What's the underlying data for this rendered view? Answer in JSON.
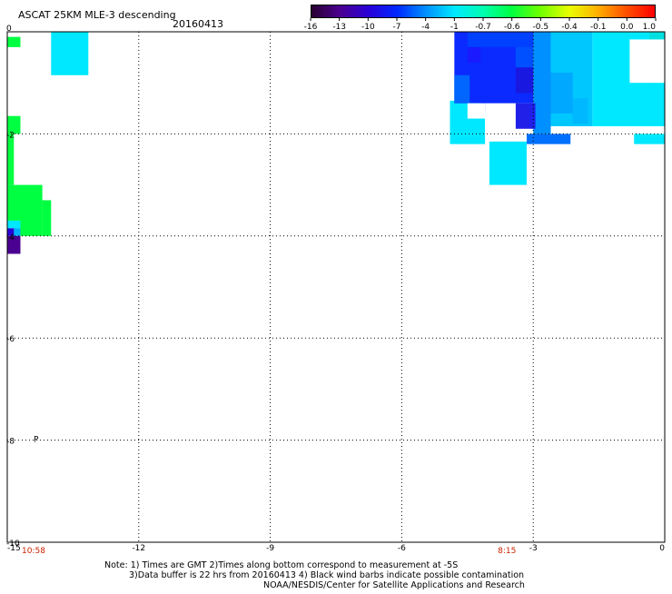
{
  "title": "ASCAT 25KM MLE-3 descending",
  "date": "20160413",
  "colorbar": {
    "labels": [
      "-16",
      "-13",
      "-10",
      "-7",
      "-4",
      "-1",
      "-0.7",
      "-0.6",
      "-0.5",
      "-0.4",
      "-0.1",
      "0.0",
      "1.0"
    ],
    "colors": [
      "#2a0030",
      "#4a0090",
      "#2a00d8",
      "#0028ff",
      "#0090ff",
      "#00e8ff",
      "#00ffb0",
      "#00ff40",
      "#70ff00",
      "#e8ff00",
      "#ffb000",
      "#ff5000",
      "#ff0000"
    ]
  },
  "axes": {
    "x_range": [
      -15,
      0
    ],
    "y_range": [
      -10,
      0
    ],
    "x_ticks": [
      -15,
      -12,
      -9,
      -6,
      -3,
      0
    ],
    "y_ticks": [
      0,
      -2,
      -4,
      -6,
      -8,
      -10
    ],
    "x_tick_labels": [
      "-15",
      "-12",
      "-9",
      "-6",
      "-3",
      "0"
    ],
    "y_tick_labels": [
      "0",
      "-2",
      "-4",
      "-6",
      "-8",
      "-10"
    ]
  },
  "time_labels": [
    {
      "text": "10:58",
      "x": -14.4
    },
    {
      "text": "8:15",
      "x": -3.6
    }
  ],
  "wind_barb_symbol": "P",
  "wind_barb_position": {
    "x": -14.4,
    "y": -8
  },
  "notes": [
    "Note: 1) Times are GMT 2)Times along bottom correspond to measurement at -5S",
    "3)Data buffer is 22 hrs from 20160413 4) Black wind barbs indicate possible contamination",
    "NOAA/NESDIS/Center for Satellite Applications and Research"
  ],
  "cells": [
    {
      "lon": -15.0,
      "lat": -0.3,
      "w": 0.3,
      "h": 0.2,
      "c": "#00ff40"
    },
    {
      "lon": -14.0,
      "lat": -0.85,
      "w": 0.85,
      "h": 0.85,
      "c": "#00e8ff"
    },
    {
      "lon": -15.0,
      "lat": -2.0,
      "w": 0.3,
      "h": 0.35,
      "c": "#00ff40"
    },
    {
      "lon": -15.0,
      "lat": -3.0,
      "w": 0.15,
      "h": 1.0,
      "c": "#00ff40"
    },
    {
      "lon": -15.0,
      "lat": -3.7,
      "w": 0.8,
      "h": 0.7,
      "c": "#00ff40"
    },
    {
      "lon": -14.2,
      "lat": -4.0,
      "w": 0.2,
      "h": 0.7,
      "c": "#00ff40"
    },
    {
      "lon": -14.7,
      "lat": -4.0,
      "w": 0.5,
      "h": 0.35,
      "c": "#00ff40"
    },
    {
      "lon": -15.0,
      "lat": -3.85,
      "w": 0.3,
      "h": 0.15,
      "c": "#00e8ff"
    },
    {
      "lon": -15.0,
      "lat": -4.0,
      "w": 0.2,
      "h": 0.15,
      "c": "#2a00d8"
    },
    {
      "lon": -14.85,
      "lat": -4.0,
      "w": 0.15,
      "h": 0.15,
      "c": "#00b0ff"
    },
    {
      "lon": -15.0,
      "lat": -4.35,
      "w": 0.3,
      "h": 0.35,
      "c": "#4a0090"
    },
    {
      "lon": -4.9,
      "lat": -2.2,
      "w": 0.8,
      "h": 0.85,
      "c": "#00e8ff"
    },
    {
      "lon": -4.0,
      "lat": -3.0,
      "w": 0.85,
      "h": 0.85,
      "c": "#00e8ff"
    },
    {
      "lon": -3.15,
      "lat": -2.2,
      "w": 1.0,
      "h": 0.2,
      "c": "#0070ff"
    },
    {
      "lon": -0.7,
      "lat": -2.2,
      "w": 0.7,
      "h": 0.2,
      "c": "#00e8ff"
    },
    {
      "lon": -0.85,
      "lat": -1.85,
      "w": 0.85,
      "h": 1.85,
      "c": "#00e8ff"
    },
    {
      "lon": -1.65,
      "lat": -1.85,
      "w": 1.3,
      "h": 1.85,
      "c": "#00e8ff"
    },
    {
      "lon": -2.6,
      "lat": -1.85,
      "w": 0.95,
      "h": 1.85,
      "c": "#00c8ff"
    },
    {
      "lon": -3.0,
      "lat": -2.0,
      "w": 0.4,
      "h": 2.0,
      "c": "#0090ff"
    },
    {
      "lon": -4.8,
      "lat": -1.4,
      "w": 1.8,
      "h": 1.4,
      "c": "#0a2aff"
    },
    {
      "lon": -3.7,
      "lat": -1.9,
      "w": 0.75,
      "h": 0.5,
      "c": "#2020e8"
    },
    {
      "lon": -4.2,
      "lat": -1.55,
      "w": 0.5,
      "h": 0.15,
      "c": "#0a2aff"
    },
    {
      "lon": -4.8,
      "lat": -1.4,
      "w": 0.35,
      "h": 0.55,
      "c": "#0066ff"
    },
    {
      "lon": -4.5,
      "lat": -0.6,
      "w": 0.3,
      "h": 0.3,
      "c": "#1a1aff"
    },
    {
      "lon": -3.4,
      "lat": -0.7,
      "w": 0.4,
      "h": 0.7,
      "c": "#0050ff"
    },
    {
      "lon": -3.4,
      "lat": -1.2,
      "w": 0.4,
      "h": 0.5,
      "c": "#1818e0"
    },
    {
      "lon": -2.6,
      "lat": -1.6,
      "w": 0.5,
      "h": 0.8,
      "c": "#00a8ff"
    },
    {
      "lon": -2.1,
      "lat": -1.8,
      "w": 0.35,
      "h": 0.5,
      "c": "#00b8ff"
    },
    {
      "lon": -0.35,
      "lat": -1.0,
      "w": 0.35,
      "h": 1.0,
      "c": "#00e0e0"
    },
    {
      "lon": -0.45,
      "lat": -0.7,
      "w": 0.45,
      "h": 0.45,
      "c": "#40f0c0"
    },
    {
      "lon": -4.5,
      "lat": -0.3,
      "w": 1.5,
      "h": 0.3,
      "c": "#0040ff"
    }
  ],
  "white_holes": [
    {
      "lon": -4.1,
      "lat": -2.0,
      "w": 0.7,
      "h": 0.6
    },
    {
      "lon": -4.5,
      "lat": -1.7,
      "w": 0.4,
      "h": 0.3
    },
    {
      "lon": -0.8,
      "lat": -1.0,
      "w": 0.8,
      "h": 0.85
    }
  ]
}
